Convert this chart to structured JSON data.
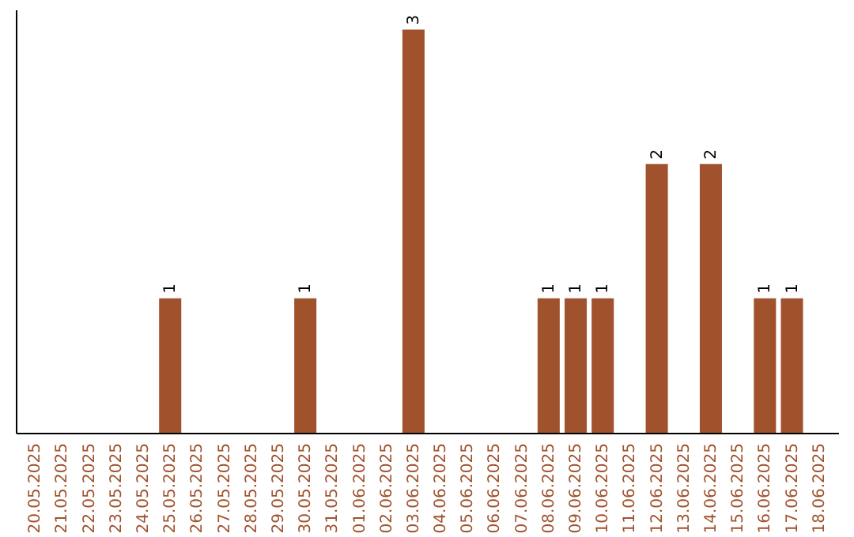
{
  "chart_data": {
    "type": "bar",
    "categories": [
      "20.05.2025",
      "21.05.2025",
      "22.05.2025",
      "23.05.2025",
      "24.05.2025",
      "25.05.2025",
      "26.05.2025",
      "27.05.2025",
      "28.05.2025",
      "29.05.2025",
      "30.05.2025",
      "31.05.2025",
      "01.06.2025",
      "02.06.2025",
      "03.06.2025",
      "04.06.2025",
      "05.06.2025",
      "06.06.2025",
      "07.06.2025",
      "08.06.2025",
      "09.06.2025",
      "10.06.2025",
      "11.06.2025",
      "12.06.2025",
      "13.06.2025",
      "14.06.2025",
      "15.06.2025",
      "16.06.2025",
      "17.06.2025",
      "18.06.2025"
    ],
    "values": [
      0,
      0,
      0,
      0,
      0,
      1,
      0,
      0,
      0,
      0,
      1,
      0,
      0,
      0,
      3,
      0,
      0,
      0,
      0,
      1,
      1,
      1,
      0,
      2,
      0,
      2,
      0,
      1,
      1,
      0
    ],
    "value_labels": [
      null,
      null,
      null,
      null,
      null,
      "1",
      null,
      null,
      null,
      null,
      "1",
      null,
      null,
      null,
      "3",
      null,
      null,
      null,
      null,
      "1",
      "1",
      "1",
      null,
      "2",
      null,
      "2",
      null,
      "1",
      "1",
      null
    ],
    "color": "#a0522d",
    "grid": false
  }
}
